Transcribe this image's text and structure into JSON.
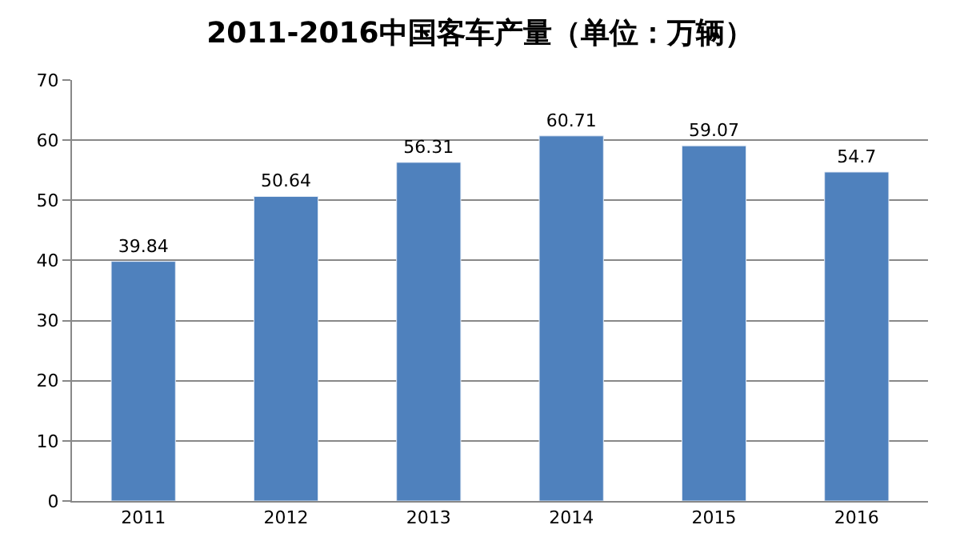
{
  "chart_data": {
    "type": "bar",
    "title": "2011-2016中国客车产量（单位：万辆）",
    "categories": [
      "2011",
      "2012",
      "2013",
      "2014",
      "2015",
      "2016"
    ],
    "values": [
      39.84,
      50.64,
      56.31,
      60.71,
      59.07,
      54.7
    ],
    "color": "#4f81bd",
    "data_labels": true,
    "grid": "y",
    "legend": false,
    "ylim": [
      0,
      70
    ],
    "yticks": [
      0,
      10,
      20,
      30,
      40,
      50,
      60,
      70
    ]
  }
}
